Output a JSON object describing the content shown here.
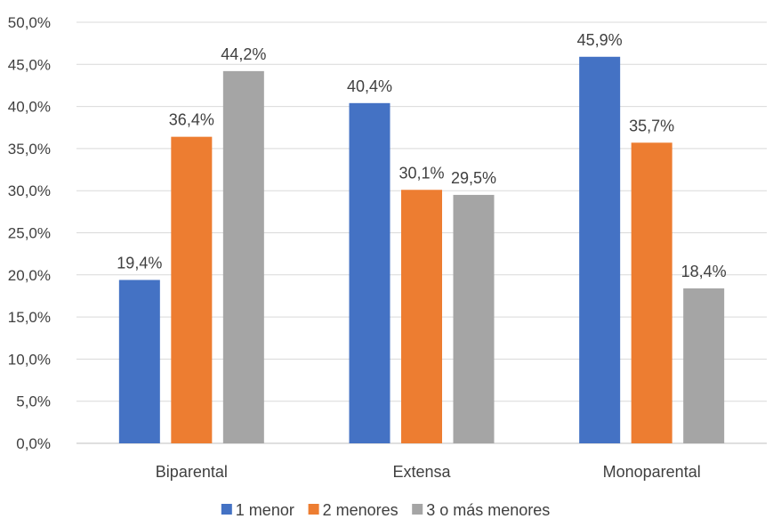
{
  "chart_data": {
    "type": "bar",
    "categories": [
      "Biparental",
      "Extensa",
      "Monoparental"
    ],
    "series": [
      {
        "name": "1 menor",
        "color": "#4472C4",
        "values": [
          19.4,
          40.4,
          45.9
        ],
        "labels": [
          "19,4%",
          "40,4%",
          "45,9%"
        ]
      },
      {
        "name": "2 menores",
        "color": "#ED7D31",
        "values": [
          36.4,
          30.1,
          35.7
        ],
        "labels": [
          "36,4%",
          "30,1%",
          "35,7%"
        ]
      },
      {
        "name": "3 o más menores",
        "color": "#A5A5A5",
        "values": [
          44.2,
          29.5,
          18.4
        ],
        "labels": [
          "44,2%",
          "29,5%",
          "18,4%"
        ]
      }
    ],
    "yticks": [
      0,
      5,
      10,
      15,
      20,
      25,
      30,
      35,
      40,
      45,
      50
    ],
    "ytick_labels": [
      "0,0%",
      "5,0%",
      "10,0%",
      "15,0%",
      "20,0%",
      "25,0%",
      "30,0%",
      "35,0%",
      "40,0%",
      "45,0%",
      "50,0%"
    ],
    "ylim": [
      0,
      50
    ],
    "title": "",
    "xlabel": "",
    "ylabel": "",
    "grid": true,
    "legend": "bottom"
  }
}
